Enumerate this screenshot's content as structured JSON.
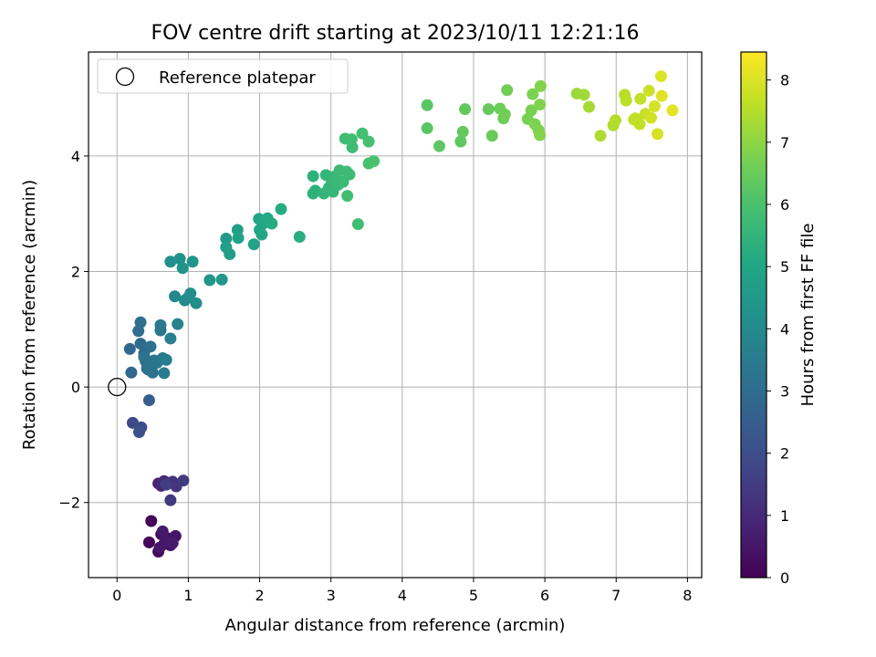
{
  "chart_data": {
    "type": "scatter",
    "title": "FOV centre drift starting at 2023/10/11 12:21:16",
    "xlabel": "Angular distance from reference (arcmin)",
    "ylabel": "Rotation from reference (arcmin)",
    "xlim": [
      -0.4,
      8.2
    ],
    "ylim": [
      -3.3,
      5.8
    ],
    "xticks": [
      0,
      1,
      2,
      3,
      4,
      5,
      6,
      7,
      8
    ],
    "yticks": [
      -2,
      0,
      2,
      4
    ],
    "xtick_labels": [
      "0",
      "1",
      "2",
      "3",
      "4",
      "5",
      "6",
      "7",
      "8"
    ],
    "ytick_labels": [
      "−2",
      "0",
      "2",
      "4"
    ],
    "grid": true,
    "legend": {
      "position": "top-left",
      "entries": [
        "Reference platepar"
      ]
    },
    "reference_point": {
      "x": 0,
      "y": 0,
      "label": "Reference platepar"
    },
    "colorbar": {
      "label": "Hours from first FF file",
      "colormap": "viridis",
      "range": [
        0,
        8.45
      ],
      "ticks": [
        0,
        1,
        2,
        3,
        4,
        5,
        6,
        7,
        8
      ],
      "tick_labels": [
        "0",
        "1",
        "2",
        "3",
        "4",
        "5",
        "6",
        "7",
        "8"
      ]
    },
    "points": [
      {
        "x": 0.48,
        "y": -2.32,
        "c": 0.1
      },
      {
        "x": 0.45,
        "y": -2.69,
        "c": 0.15
      },
      {
        "x": 0.58,
        "y": -2.85,
        "c": 0.2
      },
      {
        "x": 0.62,
        "y": -2.55,
        "c": 0.25
      },
      {
        "x": 0.66,
        "y": -2.72,
        "c": 0.3
      },
      {
        "x": 0.72,
        "y": -2.62,
        "c": 0.35
      },
      {
        "x": 0.75,
        "y": -2.74,
        "c": 0.4
      },
      {
        "x": 0.82,
        "y": -2.58,
        "c": 0.45
      },
      {
        "x": 0.6,
        "y": -2.78,
        "c": 0.5
      },
      {
        "x": 0.68,
        "y": -2.66,
        "c": 0.55
      },
      {
        "x": 0.64,
        "y": -2.5,
        "c": 0.58
      },
      {
        "x": 0.78,
        "y": -2.7,
        "c": 0.62
      },
      {
        "x": 0.58,
        "y": -1.67,
        "c": 0.8
      },
      {
        "x": 0.62,
        "y": -1.71,
        "c": 0.9
      },
      {
        "x": 0.66,
        "y": -1.63,
        "c": 1.0
      },
      {
        "x": 0.72,
        "y": -1.66,
        "c": 1.1
      },
      {
        "x": 0.78,
        "y": -1.64,
        "c": 1.2
      },
      {
        "x": 0.83,
        "y": -1.72,
        "c": 1.3
      },
      {
        "x": 0.75,
        "y": -1.96,
        "c": 1.4
      },
      {
        "x": 0.93,
        "y": -1.62,
        "c": 1.45
      },
      {
        "x": 0.69,
        "y": -1.69,
        "c": 1.5
      },
      {
        "x": 0.22,
        "y": -0.62,
        "c": 1.85
      },
      {
        "x": 0.34,
        "y": -0.7,
        "c": 1.95
      },
      {
        "x": 0.31,
        "y": -0.78,
        "c": 2.05
      },
      {
        "x": 0.45,
        "y": -0.23,
        "c": 2.5
      },
      {
        "x": 0.18,
        "y": 0.66,
        "c": 2.8
      },
      {
        "x": 0.2,
        "y": 0.25,
        "c": 2.85
      },
      {
        "x": 0.3,
        "y": 0.97,
        "c": 3.0
      },
      {
        "x": 0.33,
        "y": 1.12,
        "c": 3.05
      },
      {
        "x": 0.33,
        "y": 0.75,
        "c": 2.95
      },
      {
        "x": 0.38,
        "y": 0.58,
        "c": 2.9
      },
      {
        "x": 0.4,
        "y": 0.45,
        "c": 2.9
      },
      {
        "x": 0.42,
        "y": 0.32,
        "c": 3.0
      },
      {
        "x": 0.45,
        "y": 0.38,
        "c": 3.1
      },
      {
        "x": 0.47,
        "y": 0.7,
        "c": 3.15
      },
      {
        "x": 0.5,
        "y": 0.25,
        "c": 3.1
      },
      {
        "x": 0.52,
        "y": 0.46,
        "c": 3.2
      },
      {
        "x": 0.38,
        "y": 0.52,
        "c": 3.25
      },
      {
        "x": 0.56,
        "y": 0.42,
        "c": 3.3
      },
      {
        "x": 0.61,
        "y": 1.07,
        "c": 3.4
      },
      {
        "x": 0.61,
        "y": 0.98,
        "c": 3.35
      },
      {
        "x": 0.64,
        "y": 0.5,
        "c": 3.45
      },
      {
        "x": 0.66,
        "y": 0.24,
        "c": 3.5
      },
      {
        "x": 0.69,
        "y": 0.47,
        "c": 3.55
      },
      {
        "x": 0.75,
        "y": 0.84,
        "c": 3.6
      },
      {
        "x": 0.44,
        "y": 0.3,
        "c": 3.2
      },
      {
        "x": 0.85,
        "y": 1.09,
        "c": 3.75
      },
      {
        "x": 0.81,
        "y": 1.57,
        "c": 3.9
      },
      {
        "x": 0.95,
        "y": 1.5,
        "c": 4.0
      },
      {
        "x": 1.03,
        "y": 1.62,
        "c": 4.05
      },
      {
        "x": 1.0,
        "y": 1.55,
        "c": 4.1
      },
      {
        "x": 1.11,
        "y": 1.45,
        "c": 4.15
      },
      {
        "x": 0.75,
        "y": 2.17,
        "c": 4.2
      },
      {
        "x": 0.88,
        "y": 2.22,
        "c": 4.25
      },
      {
        "x": 0.92,
        "y": 2.06,
        "c": 4.3
      },
      {
        "x": 1.06,
        "y": 2.17,
        "c": 4.35
      },
      {
        "x": 1.3,
        "y": 1.85,
        "c": 4.45
      },
      {
        "x": 1.47,
        "y": 1.86,
        "c": 4.5
      },
      {
        "x": 1.53,
        "y": 2.57,
        "c": 4.6
      },
      {
        "x": 1.53,
        "y": 2.42,
        "c": 4.65
      },
      {
        "x": 1.58,
        "y": 2.3,
        "c": 4.7
      },
      {
        "x": 1.69,
        "y": 2.72,
        "c": 4.75
      },
      {
        "x": 1.7,
        "y": 2.58,
        "c": 4.8
      },
      {
        "x": 1.92,
        "y": 2.47,
        "c": 4.85
      },
      {
        "x": 1.99,
        "y": 2.91,
        "c": 4.9
      },
      {
        "x": 2.0,
        "y": 2.72,
        "c": 4.95
      },
      {
        "x": 2.03,
        "y": 2.64,
        "c": 5.0
      },
      {
        "x": 2.06,
        "y": 2.84,
        "c": 5.05
      },
      {
        "x": 2.11,
        "y": 2.92,
        "c": 5.1
      },
      {
        "x": 2.17,
        "y": 2.83,
        "c": 5.15
      },
      {
        "x": 2.3,
        "y": 3.08,
        "c": 5.2
      },
      {
        "x": 2.56,
        "y": 2.6,
        "c": 5.3
      },
      {
        "x": 2.75,
        "y": 3.65,
        "c": 5.4
      },
      {
        "x": 2.78,
        "y": 3.4,
        "c": 5.45
      },
      {
        "x": 2.75,
        "y": 3.35,
        "c": 5.4
      },
      {
        "x": 2.9,
        "y": 3.35,
        "c": 5.5
      },
      {
        "x": 2.93,
        "y": 3.67,
        "c": 5.55
      },
      {
        "x": 2.97,
        "y": 3.45,
        "c": 5.55
      },
      {
        "x": 3.01,
        "y": 3.57,
        "c": 5.6
      },
      {
        "x": 3.03,
        "y": 3.38,
        "c": 5.6
      },
      {
        "x": 3.06,
        "y": 3.65,
        "c": 5.65
      },
      {
        "x": 3.1,
        "y": 3.5,
        "c": 5.65
      },
      {
        "x": 3.12,
        "y": 3.75,
        "c": 5.7
      },
      {
        "x": 3.17,
        "y": 3.55,
        "c": 5.7
      },
      {
        "x": 3.22,
        "y": 3.73,
        "c": 5.75
      },
      {
        "x": 3.26,
        "y": 3.68,
        "c": 5.75
      },
      {
        "x": 3.2,
        "y": 4.3,
        "c": 5.8
      },
      {
        "x": 3.3,
        "y": 4.15,
        "c": 5.8
      },
      {
        "x": 3.23,
        "y": 3.31,
        "c": 5.85
      },
      {
        "x": 3.29,
        "y": 4.29,
        "c": 5.85
      },
      {
        "x": 3.38,
        "y": 2.82,
        "c": 5.85
      },
      {
        "x": 3.44,
        "y": 4.39,
        "c": 5.9
      },
      {
        "x": 3.53,
        "y": 4.25,
        "c": 5.95
      },
      {
        "x": 3.53,
        "y": 3.87,
        "c": 5.95
      },
      {
        "x": 3.6,
        "y": 3.91,
        "c": 6.0
      },
      {
        "x": 4.35,
        "y": 4.88,
        "c": 6.25
      },
      {
        "x": 4.35,
        "y": 4.48,
        "c": 6.25
      },
      {
        "x": 4.52,
        "y": 4.17,
        "c": 6.3
      },
      {
        "x": 4.82,
        "y": 4.25,
        "c": 6.35
      },
      {
        "x": 4.85,
        "y": 4.42,
        "c": 6.4
      },
      {
        "x": 4.88,
        "y": 4.81,
        "c": 6.4
      },
      {
        "x": 5.21,
        "y": 4.81,
        "c": 6.45
      },
      {
        "x": 5.26,
        "y": 4.35,
        "c": 6.5
      },
      {
        "x": 5.37,
        "y": 4.82,
        "c": 6.55
      },
      {
        "x": 5.42,
        "y": 4.65,
        "c": 6.55
      },
      {
        "x": 5.44,
        "y": 4.72,
        "c": 6.6
      },
      {
        "x": 5.47,
        "y": 5.14,
        "c": 6.6
      },
      {
        "x": 5.76,
        "y": 4.64,
        "c": 6.7
      },
      {
        "x": 5.81,
        "y": 4.79,
        "c": 6.7
      },
      {
        "x": 5.83,
        "y": 5.07,
        "c": 6.75
      },
      {
        "x": 5.86,
        "y": 4.55,
        "c": 6.8
      },
      {
        "x": 5.91,
        "y": 4.45,
        "c": 6.8
      },
      {
        "x": 5.93,
        "y": 4.89,
        "c": 6.85
      },
      {
        "x": 5.94,
        "y": 5.21,
        "c": 6.85
      },
      {
        "x": 5.93,
        "y": 4.36,
        "c": 6.9
      },
      {
        "x": 6.45,
        "y": 5.08,
        "c": 7.2
      },
      {
        "x": 6.55,
        "y": 5.06,
        "c": 7.25
      },
      {
        "x": 6.62,
        "y": 4.85,
        "c": 7.3
      },
      {
        "x": 6.78,
        "y": 4.35,
        "c": 7.4
      },
      {
        "x": 6.96,
        "y": 4.53,
        "c": 7.45
      },
      {
        "x": 6.99,
        "y": 4.62,
        "c": 7.5
      },
      {
        "x": 7.12,
        "y": 5.06,
        "c": 7.55
      },
      {
        "x": 7.14,
        "y": 4.96,
        "c": 7.6
      },
      {
        "x": 7.25,
        "y": 4.63,
        "c": 7.65
      },
      {
        "x": 7.33,
        "y": 4.55,
        "c": 7.7
      },
      {
        "x": 7.34,
        "y": 4.99,
        "c": 7.7
      },
      {
        "x": 7.41,
        "y": 4.73,
        "c": 7.75
      },
      {
        "x": 7.46,
        "y": 5.13,
        "c": 7.8
      },
      {
        "x": 7.49,
        "y": 4.66,
        "c": 7.85
      },
      {
        "x": 7.54,
        "y": 4.86,
        "c": 7.9
      },
      {
        "x": 7.58,
        "y": 4.38,
        "c": 7.95
      },
      {
        "x": 7.63,
        "y": 5.38,
        "c": 8.0
      },
      {
        "x": 7.64,
        "y": 5.04,
        "c": 8.05
      },
      {
        "x": 7.79,
        "y": 4.79,
        "c": 8.1
      },
      {
        "x": 7.27,
        "y": 4.65,
        "c": 7.65
      }
    ]
  }
}
